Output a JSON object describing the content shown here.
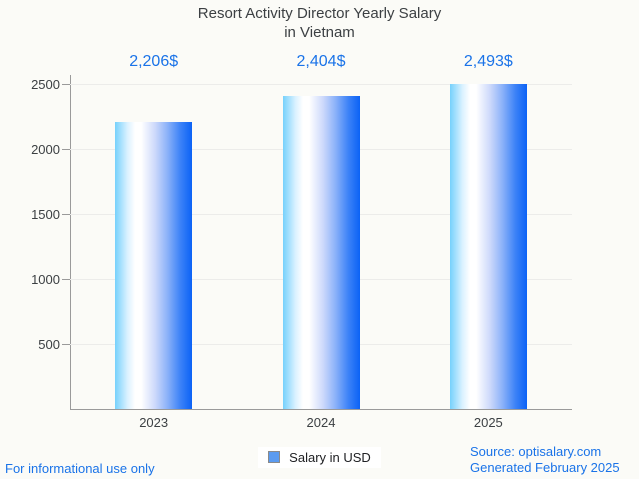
{
  "title": {
    "line1": "Resort Activity Director Yearly Salary",
    "line2": "in Vietnam"
  },
  "chart_data": {
    "type": "bar",
    "title": "Resort Activity Director Yearly Salary in Vietnam",
    "categories": [
      "2023",
      "2024",
      "2025"
    ],
    "values": [
      2206,
      2404,
      2493
    ],
    "value_labels": [
      "2,206$",
      "2,404$",
      "2,493$"
    ],
    "series_name": "Salary in USD",
    "xlabel": "",
    "ylabel": "",
    "ylim": [
      0,
      2500
    ],
    "y_ticks": [
      500,
      1000,
      1500,
      2000,
      2500
    ],
    "y_tick_labels": [
      "500",
      "1000",
      "1500",
      "2000",
      "2500"
    ],
    "grid": "horizontal",
    "legend_position": "bottom-center"
  },
  "legend": {
    "label": "Salary in USD"
  },
  "footer": {
    "left": "For informational use only",
    "source": "Source: optisalary.com",
    "generated": "Generated February 2025"
  },
  "colors": {
    "accent_text": "#1a73e8",
    "title_text": "#3c4043",
    "axis_line": "#9a9a9a",
    "gridline": "#ececea",
    "legend_swatch": "#5b9bf0",
    "bar_gradient_left": "#76d1fc",
    "bar_gradient_mid": "#ffffff",
    "bar_gradient_right": "#0b62f6",
    "background": "#fbfbf7"
  }
}
